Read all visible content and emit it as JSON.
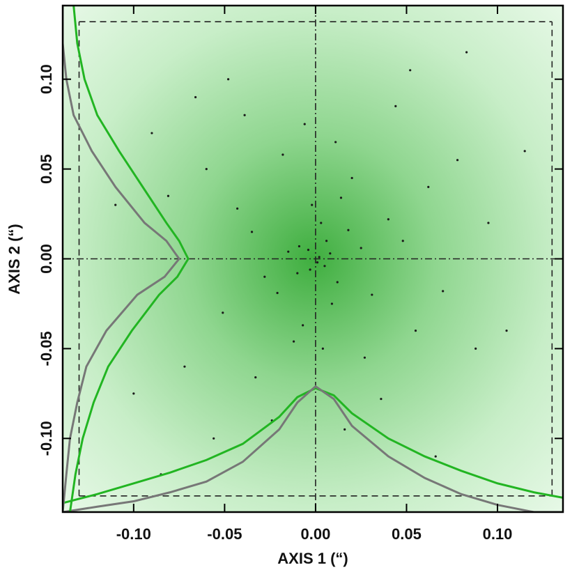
{
  "chart_data": {
    "type": "scatter",
    "xlabel": "AXIS 1 (“)",
    "ylabel": "AXIS 2 (“)",
    "xlim": [
      -0.139,
      0.136
    ],
    "ylim": [
      -0.141,
      0.141
    ],
    "xticks": [
      {
        "value": -0.1,
        "label": "-0.10"
      },
      {
        "value": -0.05,
        "label": "-0.05"
      },
      {
        "value": 0,
        "label": "0.00"
      },
      {
        "value": 0.05,
        "label": "0.05"
      },
      {
        "value": 0.1,
        "label": "0.10"
      }
    ],
    "yticks": [
      {
        "value": -0.1,
        "label": "-0.10"
      },
      {
        "value": -0.05,
        "label": "-0.05"
      },
      {
        "value": 0,
        "label": "0.00"
      },
      {
        "value": 0.05,
        "label": "0.05"
      },
      {
        "value": 0.1,
        "label": "0.10"
      }
    ],
    "box_x": [
      -0.13,
      0.13
    ],
    "box_y": [
      -0.132,
      0.132
    ],
    "crosshair": [
      0,
      0
    ],
    "points": {
      "color": "#1a1a1a",
      "x": [
        0.001,
        -0.004,
        0.006,
        -0.01,
        0.012,
        -0.015,
        0.003,
        0.018,
        -0.021,
        0.009,
        -0.002,
        0.025,
        -0.028,
        0.014,
        -0.007,
        0.031,
        -0.035,
        0.02,
        -0.012,
        0.004,
        0.04,
        -0.043,
        0.027,
        -0.018,
        0.048,
        -0.051,
        0.011,
        -0.033,
        0.055,
        -0.006,
        0.062,
        -0.06,
        0.036,
        -0.039,
        0.07,
        -0.072,
        0.044,
        -0.024,
        0.078,
        -0.081,
        0.016,
        -0.048,
        0.088,
        -0.09,
        0.052,
        -0.056,
        0.095,
        -0.1,
        0.066,
        -0.066,
        0.105,
        -0.11,
        0.083,
        -0.085,
        0.115,
        0.002,
        -0.003,
        0.008,
        -0.009,
        0.005
      ],
      "y": [
        -0.002,
        0.005,
        0.01,
        -0.008,
        -0.013,
        0.004,
        0.02,
        0.016,
        -0.019,
        -0.025,
        0.03,
        0.006,
        -0.01,
        0.034,
        -0.037,
        -0.02,
        0.015,
        0.045,
        -0.046,
        -0.05,
        0.022,
        0.028,
        -0.055,
        0.058,
        0.01,
        -0.03,
        0.065,
        -0.066,
        -0.04,
        0.075,
        0.04,
        0.05,
        -0.078,
        0.08,
        -0.018,
        -0.06,
        0.085,
        -0.09,
        0.055,
        0.035,
        -0.095,
        0.1,
        -0.05,
        0.07,
        0.105,
        -0.1,
        0.02,
        -0.075,
        -0.11,
        0.09,
        -0.04,
        0.03,
        0.115,
        -0.12,
        0.06,
        0.001,
        -0.006,
        0.003,
        0.007,
        -0.004
      ]
    },
    "lines": [
      {
        "color": "#22b522",
        "x": [
          -0.139,
          -0.12,
          -0.1,
          -0.08,
          -0.06,
          -0.04,
          -0.02,
          -0.01,
          0,
          0.01,
          0.02,
          0.04,
          0.06,
          0.08,
          0.1,
          0.12,
          0.136
        ],
        "y": [
          -0.136,
          -0.131,
          -0.125,
          -0.119,
          -0.112,
          -0.103,
          -0.088,
          -0.077,
          -0.072,
          -0.076,
          -0.086,
          -0.1,
          -0.11,
          -0.118,
          -0.125,
          -0.13,
          -0.133
        ]
      },
      {
        "color": "#777777",
        "x": [
          -0.139,
          -0.12,
          -0.1,
          -0.08,
          -0.06,
          -0.04,
          -0.02,
          -0.01,
          0,
          0.01,
          0.02,
          0.04,
          0.06,
          0.08,
          0.1,
          0.12,
          0.136
        ],
        "y": [
          -0.141,
          -0.138,
          -0.135,
          -0.13,
          -0.124,
          -0.113,
          -0.095,
          -0.08,
          -0.071,
          -0.078,
          -0.093,
          -0.11,
          -0.122,
          -0.131,
          -0.137,
          -0.141,
          -0.141
        ]
      },
      {
        "color": "#22b522",
        "x": [
          -0.133,
          -0.131,
          -0.127,
          -0.12,
          -0.108,
          -0.095,
          -0.082,
          -0.075,
          -0.07,
          -0.076,
          -0.086,
          -0.101,
          -0.114,
          -0.122,
          -0.128,
          -0.132,
          -0.135
        ],
        "y": [
          0.141,
          0.12,
          0.1,
          0.08,
          0.06,
          0.04,
          0.02,
          0.01,
          0,
          -0.01,
          -0.02,
          -0.04,
          -0.06,
          -0.08,
          -0.1,
          -0.12,
          -0.141
        ]
      },
      {
        "color": "#777777",
        "x": [
          -0.139,
          -0.139,
          -0.137,
          -0.133,
          -0.123,
          -0.11,
          -0.094,
          -0.082,
          -0.075,
          -0.083,
          -0.098,
          -0.115,
          -0.126,
          -0.131,
          -0.135,
          -0.137,
          -0.139
        ],
        "y": [
          0.141,
          0.12,
          0.1,
          0.08,
          0.06,
          0.04,
          0.02,
          0.01,
          0,
          -0.01,
          -0.02,
          -0.04,
          -0.06,
          -0.08,
          -0.1,
          -0.12,
          -0.141
        ]
      }
    ]
  }
}
